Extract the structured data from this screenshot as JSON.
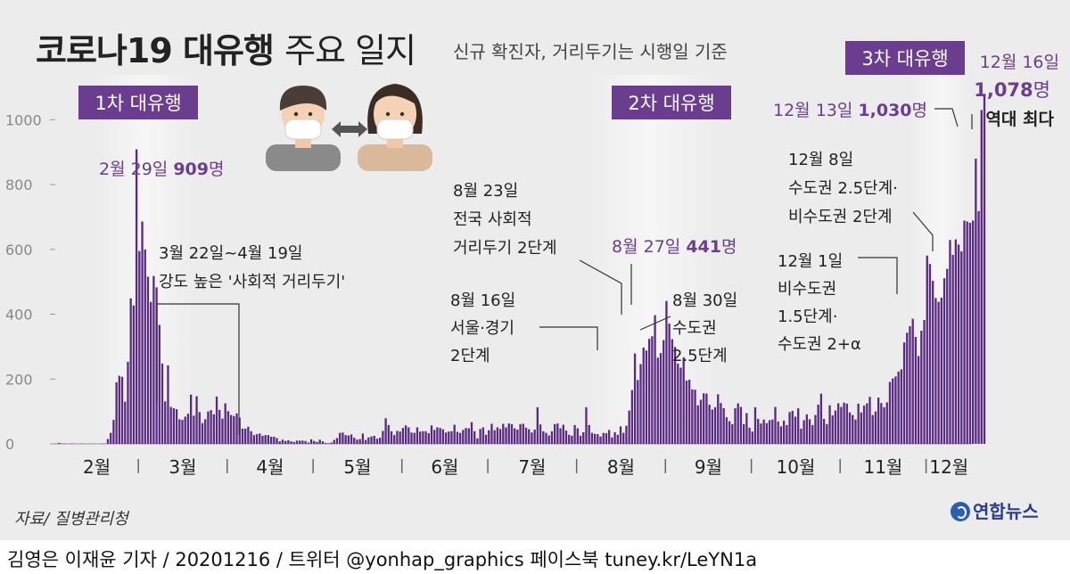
{
  "title": {
    "bold": "코로나19 대유행",
    "light": "주요 일지"
  },
  "subtitle": "신규 확진자, 거리두기는 시행일 기준",
  "source": "자료/ 질병관리청",
  "logo": "연합뉴스",
  "credit": "김영은 이재윤 기자 / 20201216 / 트위터 @yonhap_graphics  페이스북 tuney.kr/LeYN1a",
  "colors": {
    "bar": "#5a2a82",
    "badge": "#6b3d8f",
    "highlight_band": "#f6f6f6",
    "panel": "#ececec"
  },
  "waves": [
    {
      "label": "1차 대유행"
    },
    {
      "label": "2차 대유행"
    },
    {
      "label": "3차 대유행"
    }
  ],
  "annotations": {
    "a_feb29": {
      "pre": "2월 29일 ",
      "num": "909",
      "unit": "명"
    },
    "a_mar22": {
      "line1": "3월 22일~4월 19일",
      "line2": "강도 높은 '사회적 거리두기'"
    },
    "a_aug16": {
      "line1": "8월 16일",
      "line2": "서울·경기",
      "line3": "2단계"
    },
    "a_aug23": {
      "line1": "8월 23일",
      "line2": "전국 사회적",
      "line3": "거리두기 2단계"
    },
    "a_aug27": {
      "pre": "8월 27일 ",
      "num": "441",
      "unit": "명"
    },
    "a_aug30": {
      "line1": "8월 30일",
      "line2": "수도권",
      "line3": "2.5단계"
    },
    "a_dec1": {
      "line1": "12월 1일",
      "line2": "비수도권",
      "line3": "1.5단계·",
      "line4": "수도권 2+α"
    },
    "a_dec8": {
      "line1": "12월 8일",
      "line2": "수도권 2.5단계·",
      "line3": "비수도권 2단계"
    },
    "a_dec13": {
      "pre": "12월 13일 ",
      "num": "1,030",
      "unit": "명"
    },
    "a_dec16": {
      "line1": "12월 16일",
      "num": "1,078",
      "unit": "명",
      "line3": "역대 최다"
    }
  },
  "chart_data": {
    "type": "bar",
    "title": "코로나19 대유행 주요 일지",
    "subtitle": "신규 확진자, 거리두기는 시행일 기준",
    "x_start_date": "2020-02-01",
    "x_end_date": "2020-12-16",
    "month_labels": [
      "2월",
      "3월",
      "4월",
      "5월",
      "6월",
      "7월",
      "8월",
      "9월",
      "10월",
      "11월",
      "12월"
    ],
    "yticks": [
      "0",
      "200",
      "400",
      "600",
      "800",
      "1000"
    ],
    "ylim": [
      0,
      1100
    ],
    "grid": false,
    "series": [
      {
        "values": [
          1,
          3,
          1,
          1,
          0,
          1,
          1,
          0,
          0,
          1,
          0,
          0,
          0,
          1,
          0,
          0,
          1,
          1,
          15,
          34,
          74,
          190,
          210,
          207,
          130,
          253,
          449,
          427,
          909,
          595,
          686,
          600,
          516,
          438,
          518,
          483,
          367,
          248,
          131,
          242,
          114,
          110,
          107,
          76,
          74,
          84,
          93,
          152,
          87,
          147,
          98,
          64,
          76,
          100,
          104,
          91,
          146,
          105,
          78,
          125,
          101,
          89,
          86,
          94,
          81,
          47,
          47,
          53,
          39,
          27,
          30,
          32,
          25,
          27,
          27,
          22,
          22,
          18,
          8,
          13,
          9,
          11,
          8,
          6,
          10,
          10,
          10,
          9,
          4,
          14,
          9,
          6,
          13,
          8,
          3,
          2,
          4,
          12,
          18,
          34,
          35,
          27,
          26,
          29,
          19,
          13,
          15,
          32,
          12,
          20,
          23,
          25,
          16,
          19,
          40,
          79,
          58,
          39,
          27,
          40,
          38,
          49,
          57,
          51,
          35,
          34,
          51,
          38,
          39,
          39,
          33,
          57,
          43,
          51,
          49,
          45,
          35,
          38,
          39,
          59,
          37,
          34,
          43,
          49,
          48,
          67,
          39,
          17,
          46,
          51,
          28,
          42,
          62,
          42,
          51,
          46,
          62,
          51,
          63,
          61,
          48,
          44,
          61,
          62,
          50,
          45,
          35,
          44,
          113,
          60,
          39,
          34,
          26,
          39,
          61,
          63,
          48,
          59,
          41,
          28,
          25,
          58,
          48,
          25,
          36,
          113,
          58,
          34,
          31,
          30,
          23,
          34,
          33,
          43,
          20,
          36,
          28,
          54,
          34,
          56,
          103,
          166,
          279,
          197,
          246,
          297,
          288,
          324,
          332,
          397,
          266,
          280,
          320,
          441,
          371,
          323,
          299,
          248,
          235,
          267,
          195,
          198,
          168,
          167,
          119,
          136,
          156,
          155,
          121,
          106,
          113,
          153,
          126,
          110,
          82,
          70,
          61,
          110,
          125,
          114,
          61,
          95,
          50,
          38,
          113,
          77,
          63,
          75,
          64,
          73,
          75,
          114,
          69,
          54,
          72,
          58,
          98,
          102,
          84,
          110,
          47,
          73,
          91,
          76,
          58,
          89,
          121,
          155,
          77,
          61,
          119,
          88,
          103,
          125,
          114,
          127,
          124,
          97,
          89,
          75,
          124,
          97,
          118,
          125,
          145,
          89,
          100,
          143,
          126,
          113,
          128,
          191,
          202,
          208,
          223,
          230,
          313,
          343,
          363,
          386,
          330,
          271,
          349,
          382,
          581,
          555,
          503,
          450,
          438,
          451,
          511,
          540,
          629,
          583,
          631,
          615,
          594,
          689,
          686,
          682,
          689,
          880,
          718,
          1030,
          1078
        ]
      }
    ]
  }
}
